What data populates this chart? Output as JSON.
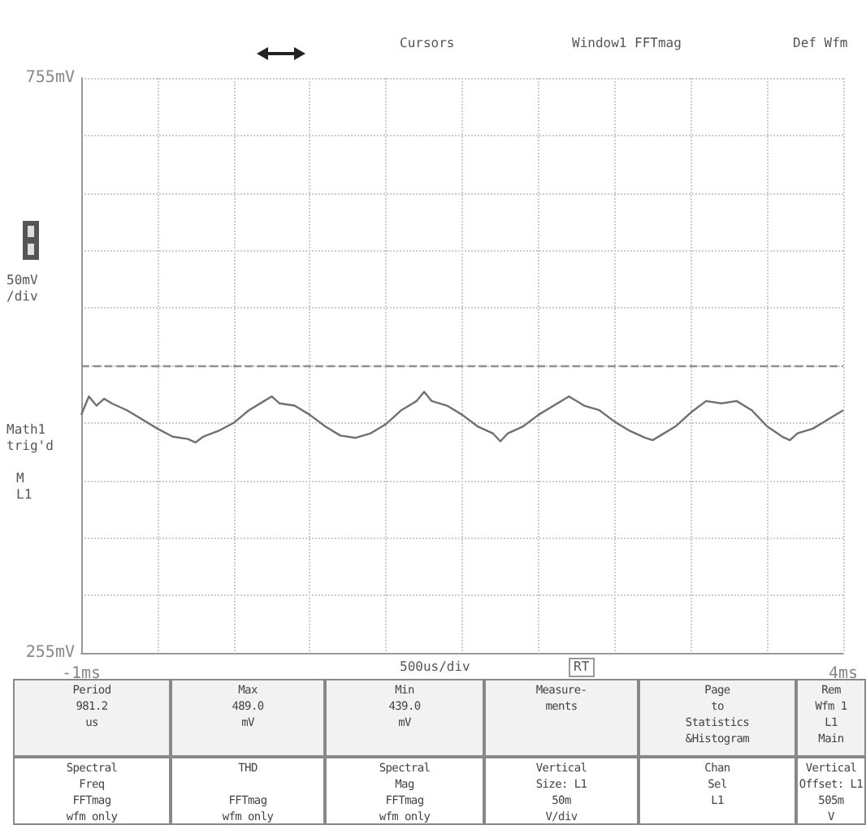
{
  "chart_data": {
    "type": "line",
    "x": [
      -1.0,
      -0.95,
      -0.9,
      -0.85,
      -0.8,
      -0.7,
      -0.6,
      -0.5,
      -0.4,
      -0.3,
      -0.25,
      -0.2,
      -0.1,
      0.0,
      0.1,
      0.2,
      0.25,
      0.3,
      0.4,
      0.5,
      0.6,
      0.7,
      0.8,
      0.9,
      1.0,
      1.1,
      1.2,
      1.25,
      1.3,
      1.4,
      1.5,
      1.6,
      1.7,
      1.75,
      1.8,
      1.9,
      2.0,
      2.1,
      2.2,
      2.3,
      2.4,
      2.5,
      2.6,
      2.7,
      2.75,
      2.8,
      2.9,
      3.0,
      3.1,
      3.2,
      3.3,
      3.4,
      3.5,
      3.6,
      3.65,
      3.7,
      3.8,
      3.9,
      4.0
    ],
    "series": [
      {
        "color": "#707070",
        "values": [
          462,
          478,
          470,
          476,
          472,
          466,
          458,
          450,
          443,
          441,
          438,
          443,
          448,
          455,
          466,
          474,
          478,
          472,
          470,
          462,
          452,
          444,
          442,
          446,
          454,
          466,
          474,
          482,
          474,
          470,
          462,
          452,
          446,
          439,
          446,
          452,
          462,
          470,
          478,
          470,
          466,
          456,
          448,
          442,
          440,
          444,
          452,
          464,
          474,
          472,
          474,
          466,
          452,
          443,
          440,
          446,
          450,
          458,
          466
        ]
      }
    ],
    "xlim": [
      -1,
      4
    ],
    "xticks": [
      {
        "value": -1,
        "label": "-1ms"
      },
      {
        "value": 4,
        "label": "4ms"
      }
    ],
    "ylim": [
      255,
      755
    ],
    "yticks": [
      {
        "value": 255,
        "label": "255mV"
      },
      {
        "value": 755,
        "label": "755mV"
      }
    ],
    "grid": true,
    "marker": "none",
    "line_style": "solid",
    "ref_lines": [
      {
        "axis": "y",
        "value": 505,
        "color": "#909090",
        "line_style": "dashed"
      }
    ],
    "annotations": [
      "Cursors",
      "Window1 FFTmag",
      "Def Wfm",
      "50mV\n/div",
      "Math1\ntrig'd",
      "M\nL1",
      "500us/div",
      "RT",
      "Period\n981.2\nus",
      "Max\n489.0\nmV",
      "Min\n439.0\nmV",
      "Measure-\nments",
      "Page\nto\nStatistics\n&Histogram",
      "Rem\nWfm 1\nL1\nMain",
      "Spectral\nFreq\nFFTmag\nwfm only",
      "THD\n\nFFTmag\nwfm only",
      "Spectral\nMag\nFFTmag\nwfm only",
      "Vertical\nSize: L1\n50m\nV/div",
      "Chan\nSel\nL1",
      "Vertical\nOffset: L1\n505m\nV"
    ]
  }
}
